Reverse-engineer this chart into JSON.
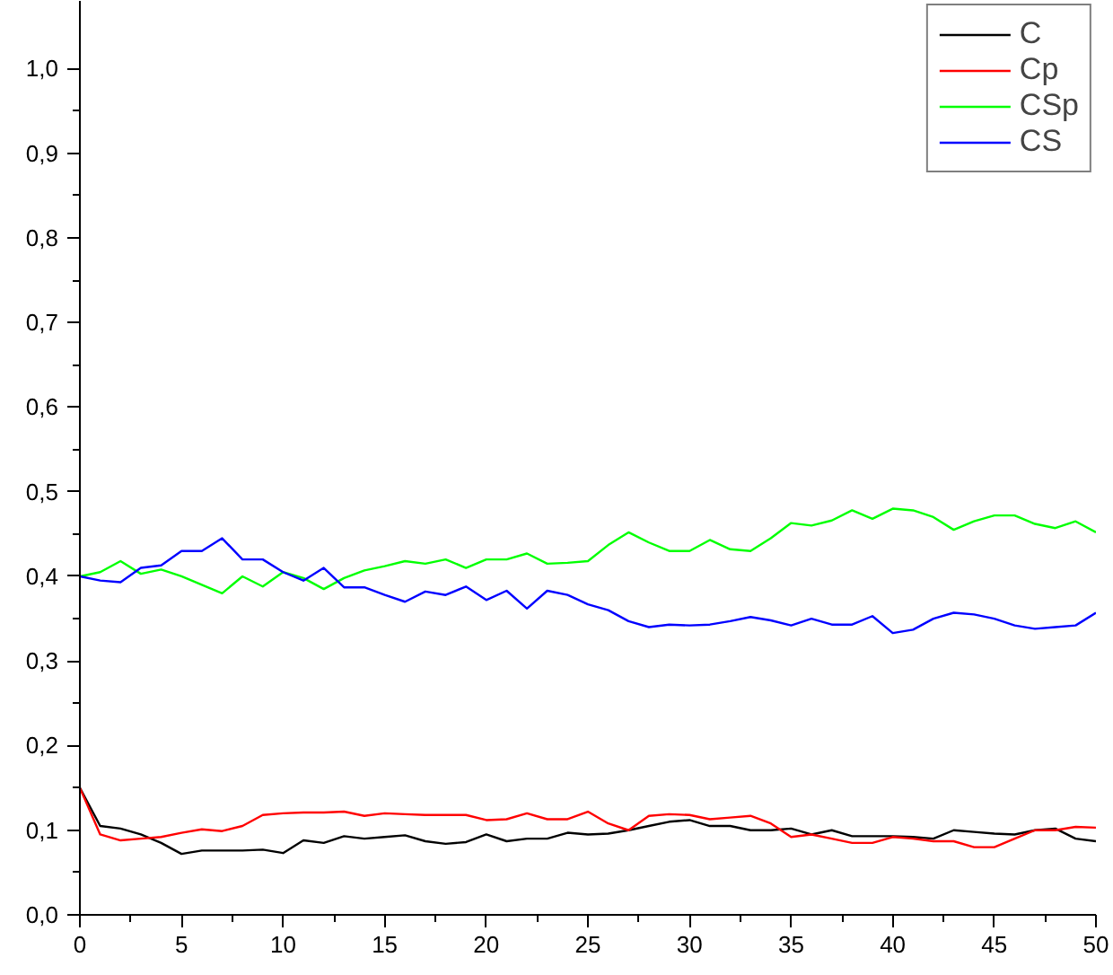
{
  "chart_data": {
    "type": "line",
    "x": [
      0,
      1,
      2,
      3,
      4,
      5,
      6,
      7,
      8,
      9,
      10,
      11,
      12,
      13,
      14,
      15,
      16,
      17,
      18,
      19,
      20,
      21,
      22,
      23,
      24,
      25,
      26,
      27,
      28,
      29,
      30,
      31,
      32,
      33,
      34,
      35,
      36,
      37,
      38,
      39,
      40,
      41,
      42,
      43,
      44,
      45,
      46,
      47,
      48,
      49,
      50
    ],
    "series": [
      {
        "name": "C",
        "color": "#000000",
        "values": [
          0.15,
          0.105,
          0.102,
          0.095,
          0.085,
          0.072,
          0.076,
          0.076,
          0.076,
          0.077,
          0.073,
          0.088,
          0.085,
          0.093,
          0.09,
          0.092,
          0.094,
          0.087,
          0.084,
          0.086,
          0.095,
          0.087,
          0.09,
          0.09,
          0.097,
          0.095,
          0.096,
          0.1,
          0.105,
          0.11,
          0.112,
          0.105,
          0.105,
          0.1,
          0.1,
          0.102,
          0.095,
          0.1,
          0.093,
          0.093,
          0.093,
          0.092,
          0.09,
          0.1,
          0.098,
          0.096,
          0.095,
          0.1,
          0.102,
          0.09,
          0.087
        ]
      },
      {
        "name": "Cp",
        "color": "#ff0000",
        "values": [
          0.15,
          0.095,
          0.088,
          0.09,
          0.092,
          0.097,
          0.101,
          0.099,
          0.105,
          0.118,
          0.12,
          0.121,
          0.121,
          0.122,
          0.117,
          0.12,
          0.119,
          0.118,
          0.118,
          0.118,
          0.112,
          0.113,
          0.12,
          0.113,
          0.113,
          0.122,
          0.108,
          0.1,
          0.117,
          0.119,
          0.118,
          0.113,
          0.115,
          0.117,
          0.108,
          0.092,
          0.095,
          0.09,
          0.085,
          0.085,
          0.092,
          0.09,
          0.087,
          0.087,
          0.08,
          0.08,
          0.09,
          0.1,
          0.1,
          0.104,
          0.103
        ]
      },
      {
        "name": "CSp",
        "color": "#00ff00",
        "values": [
          0.4,
          0.405,
          0.418,
          0.403,
          0.408,
          0.4,
          0.39,
          0.38,
          0.4,
          0.388,
          0.405,
          0.398,
          0.385,
          0.398,
          0.407,
          0.412,
          0.418,
          0.415,
          0.42,
          0.41,
          0.42,
          0.42,
          0.427,
          0.415,
          0.416,
          0.418,
          0.437,
          0.452,
          0.44,
          0.43,
          0.43,
          0.443,
          0.432,
          0.43,
          0.445,
          0.463,
          0.46,
          0.466,
          0.478,
          0.468,
          0.48,
          0.478,
          0.47,
          0.455,
          0.465,
          0.472,
          0.472,
          0.462,
          0.457,
          0.465,
          0.452
        ]
      },
      {
        "name": "CS",
        "color": "#0000ff",
        "values": [
          0.4,
          0.395,
          0.393,
          0.41,
          0.413,
          0.43,
          0.43,
          0.445,
          0.42,
          0.42,
          0.405,
          0.395,
          0.41,
          0.387,
          0.387,
          0.378,
          0.37,
          0.382,
          0.378,
          0.388,
          0.372,
          0.383,
          0.362,
          0.383,
          0.378,
          0.367,
          0.36,
          0.347,
          0.34,
          0.343,
          0.342,
          0.343,
          0.347,
          0.352,
          0.348,
          0.342,
          0.35,
          0.343,
          0.343,
          0.353,
          0.333,
          0.337,
          0.35,
          0.357,
          0.355,
          0.35,
          0.342,
          0.338,
          0.34,
          0.342,
          0.357
        ]
      }
    ],
    "xlim": [
      0,
      50
    ],
    "ylim": [
      0,
      1.08
    ],
    "xticks": [
      0,
      5,
      10,
      15,
      20,
      25,
      30,
      35,
      40,
      45,
      50
    ],
    "yticks": [
      {
        "value": 0,
        "label": "0,0"
      },
      {
        "value": 0.1,
        "label": "0,1"
      },
      {
        "value": 0.2,
        "label": "0,2"
      },
      {
        "value": 0.3,
        "label": "0,3"
      },
      {
        "value": 0.4,
        "label": "0,4"
      },
      {
        "value": 0.5,
        "label": "0,5"
      },
      {
        "value": 0.6,
        "label": "0,6"
      },
      {
        "value": 0.7,
        "label": "0,7"
      },
      {
        "value": 0.8,
        "label": "0,8"
      },
      {
        "value": 0.9,
        "label": "0,9"
      },
      {
        "value": 1.0,
        "label": "1,0"
      }
    ],
    "grid": false,
    "legend": "top right",
    "marker": "none",
    "line_style": "solid"
  }
}
